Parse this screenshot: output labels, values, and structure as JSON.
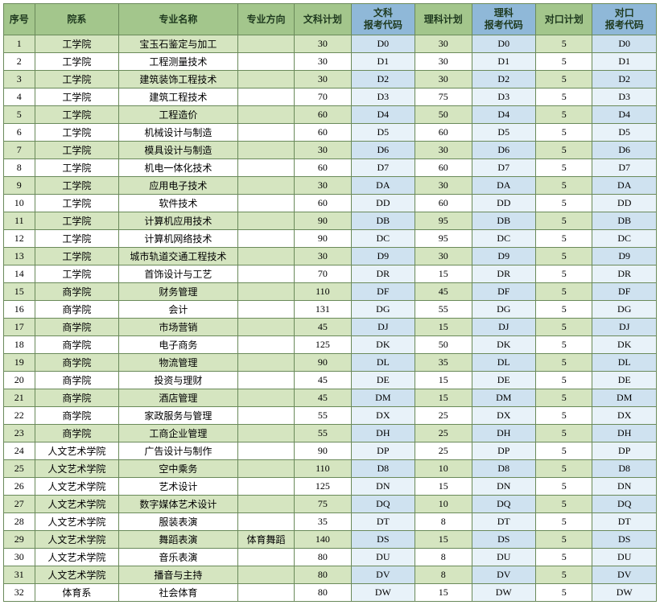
{
  "style": {
    "header_colors": [
      "#a3c68c",
      "#a3c68c",
      "#a3c68c",
      "#a3c68c",
      "#a3c68c",
      "#8fb8d8",
      "#a3c68c",
      "#8fb8d8",
      "#a3c68c",
      "#8fb8d8"
    ],
    "header_text_color": "#1f3a1f",
    "row_odd_bg": "#ffffff",
    "row_even_cols0_4": "#d5e5c0",
    "row_even_col5": "#cfe2f0",
    "row_even_cols6": "#d5e5c0",
    "row_even_col7": "#cfe2f0",
    "row_even_cols8": "#d5e5c0",
    "row_even_col9": "#cfe2f0",
    "odd_col5_bg": "#e8f2f9",
    "odd_col7_bg": "#e8f2f9",
    "odd_col9_bg": "#e8f2f9",
    "border_color": "#6a8a5a"
  },
  "columns": [
    "序号",
    "院系",
    "专业名称",
    "专业方向",
    "文科计划",
    "文科\n报考代码",
    "理科计划",
    "理科\n报考代码",
    "对口计划",
    "对口\n报考代码"
  ],
  "rows": [
    [
      "1",
      "工学院",
      "宝玉石鉴定与加工",
      "",
      "30",
      "D0",
      "30",
      "D0",
      "5",
      "D0"
    ],
    [
      "2",
      "工学院",
      "工程测量技术",
      "",
      "30",
      "D1",
      "30",
      "D1",
      "5",
      "D1"
    ],
    [
      "3",
      "工学院",
      "建筑装饰工程技术",
      "",
      "30",
      "D2",
      "30",
      "D2",
      "5",
      "D2"
    ],
    [
      "4",
      "工学院",
      "建筑工程技术",
      "",
      "70",
      "D3",
      "75",
      "D3",
      "5",
      "D3"
    ],
    [
      "5",
      "工学院",
      "工程造价",
      "",
      "60",
      "D4",
      "50",
      "D4",
      "5",
      "D4"
    ],
    [
      "6",
      "工学院",
      "机械设计与制造",
      "",
      "60",
      "D5",
      "60",
      "D5",
      "5",
      "D5"
    ],
    [
      "7",
      "工学院",
      "模具设计与制造",
      "",
      "30",
      "D6",
      "30",
      "D6",
      "5",
      "D6"
    ],
    [
      "8",
      "工学院",
      "机电一体化技术",
      "",
      "60",
      "D7",
      "60",
      "D7",
      "5",
      "D7"
    ],
    [
      "9",
      "工学院",
      "应用电子技术",
      "",
      "30",
      "DA",
      "30",
      "DA",
      "5",
      "DA"
    ],
    [
      "10",
      "工学院",
      "软件技术",
      "",
      "60",
      "DD",
      "60",
      "DD",
      "5",
      "DD"
    ],
    [
      "11",
      "工学院",
      "计算机应用技术",
      "",
      "90",
      "DB",
      "95",
      "DB",
      "5",
      "DB"
    ],
    [
      "12",
      "工学院",
      "计算机网络技术",
      "",
      "90",
      "DC",
      "95",
      "DC",
      "5",
      "DC"
    ],
    [
      "13",
      "工学院",
      "城市轨道交通工程技术",
      "",
      "30",
      "D9",
      "30",
      "D9",
      "5",
      "D9"
    ],
    [
      "14",
      "工学院",
      "首饰设计与工艺",
      "",
      "70",
      "DR",
      "15",
      "DR",
      "5",
      "DR"
    ],
    [
      "15",
      "商学院",
      "财务管理",
      "",
      "110",
      "DF",
      "45",
      "DF",
      "5",
      "DF"
    ],
    [
      "16",
      "商学院",
      "会计",
      "",
      "131",
      "DG",
      "55",
      "DG",
      "5",
      "DG"
    ],
    [
      "17",
      "商学院",
      "市场营销",
      "",
      "45",
      "DJ",
      "15",
      "DJ",
      "5",
      "DJ"
    ],
    [
      "18",
      "商学院",
      "电子商务",
      "",
      "125",
      "DK",
      "50",
      "DK",
      "5",
      "DK"
    ],
    [
      "19",
      "商学院",
      "物流管理",
      "",
      "90",
      "DL",
      "35",
      "DL",
      "5",
      "DL"
    ],
    [
      "20",
      "商学院",
      "投资与理财",
      "",
      "45",
      "DE",
      "15",
      "DE",
      "5",
      "DE"
    ],
    [
      "21",
      "商学院",
      "酒店管理",
      "",
      "45",
      "DM",
      "15",
      "DM",
      "5",
      "DM"
    ],
    [
      "22",
      "商学院",
      "家政服务与管理",
      "",
      "55",
      "DX",
      "25",
      "DX",
      "5",
      "DX"
    ],
    [
      "23",
      "商学院",
      "工商企业管理",
      "",
      "55",
      "DH",
      "25",
      "DH",
      "5",
      "DH"
    ],
    [
      "24",
      "人文艺术学院",
      "广告设计与制作",
      "",
      "90",
      "DP",
      "25",
      "DP",
      "5",
      "DP"
    ],
    [
      "25",
      "人文艺术学院",
      "空中乘务",
      "",
      "110",
      "D8",
      "10",
      "D8",
      "5",
      "D8"
    ],
    [
      "26",
      "人文艺术学院",
      "艺术设计",
      "",
      "125",
      "DN",
      "15",
      "DN",
      "5",
      "DN"
    ],
    [
      "27",
      "人文艺术学院",
      "数字媒体艺术设计",
      "",
      "75",
      "DQ",
      "10",
      "DQ",
      "5",
      "DQ"
    ],
    [
      "28",
      "人文艺术学院",
      "服装表演",
      "",
      "35",
      "DT",
      "8",
      "DT",
      "5",
      "DT"
    ],
    [
      "29",
      "人文艺术学院",
      "舞蹈表演",
      "体育舞蹈",
      "140",
      "DS",
      "15",
      "DS",
      "5",
      "DS"
    ],
    [
      "30",
      "人文艺术学院",
      "音乐表演",
      "",
      "80",
      "DU",
      "8",
      "DU",
      "5",
      "DU"
    ],
    [
      "31",
      "人文艺术学院",
      "播音与主持",
      "",
      "80",
      "DV",
      "8",
      "DV",
      "5",
      "DV"
    ],
    [
      "32",
      "体育系",
      "社会体育",
      "",
      "80",
      "DW",
      "15",
      "DW",
      "5",
      "DW"
    ]
  ]
}
